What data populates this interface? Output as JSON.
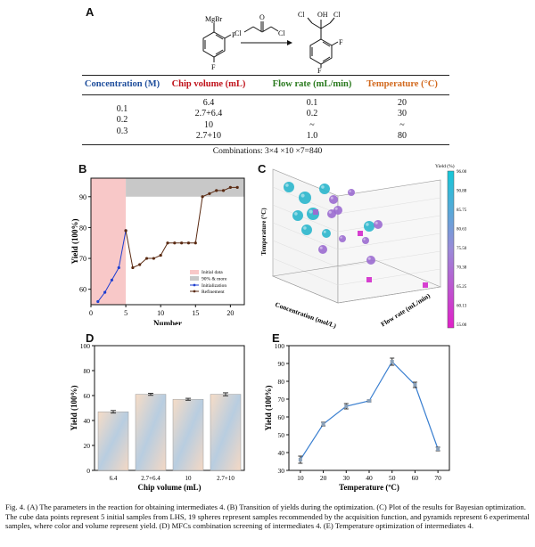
{
  "panelA": {
    "letter": "A",
    "reagent1": "MgBr",
    "reagent2_cl_left": "Cl",
    "reagent2_cl_right": "Cl",
    "reagent2_o": "O",
    "product_oh": "OH",
    "product_cl_left": "Cl",
    "product_cl_right": "Cl",
    "f_label": "F",
    "columns": [
      {
        "label": "Concentration (M)",
        "color": "#1f4e9c",
        "values": [
          "0.1",
          "0.2",
          "0.3"
        ]
      },
      {
        "label": "Chip volume (mL)",
        "color": "#c0121a",
        "values": [
          "6.4",
          "2.7+6.4",
          "10",
          "2.7+10"
        ]
      },
      {
        "label": "Flow rate (mL/min)",
        "color": "#2a7a1e",
        "values": [
          "0.1",
          "0.2",
          "~",
          "1.0"
        ]
      },
      {
        "label": "Temperature (°C)",
        "color": "#d2691e",
        "values": [
          "20",
          "30",
          "~",
          "80"
        ]
      }
    ],
    "combinations": "Combinations: 3×4 ×10 ×7=840"
  },
  "chart_data": [
    {
      "panel": "B",
      "type": "line",
      "xlabel": "Number",
      "ylabel": "Yield (100%)",
      "xlim": [
        0,
        22
      ],
      "ylim": [
        55,
        96
      ],
      "xticks": [
        0,
        5,
        10,
        15,
        20
      ],
      "yticks": [
        60,
        70,
        80,
        90
      ],
      "regions": [
        {
          "name": "Initial data",
          "x": [
            0,
            5
          ],
          "color": "#f8c8c8"
        },
        {
          "name": "90% & more",
          "y": [
            90,
            96
          ],
          "x": [
            5,
            22
          ],
          "color": "#c8c8c8"
        }
      ],
      "series": [
        {
          "name": "Initialization",
          "color": "#1f3fd0",
          "x": [
            1,
            2,
            3,
            4,
            5
          ],
          "y": [
            56,
            59,
            63,
            67,
            79
          ]
        },
        {
          "name": "Refinement",
          "color": "#5a2a12",
          "x": [
            5,
            6,
            7,
            8,
            9,
            10,
            11,
            12,
            13,
            14,
            15,
            16,
            17,
            18,
            19,
            20,
            21
          ],
          "y": [
            79,
            67,
            68,
            70,
            70,
            71,
            75,
            75,
            75,
            75,
            75,
            90,
            91,
            92,
            92,
            93,
            93
          ]
        }
      ],
      "legend": [
        "Initial data",
        "90% & more",
        "Initialization",
        "Refinement"
      ]
    },
    {
      "panel": "C",
      "type": "scatter",
      "axes": [
        "Concentration (mol/L)",
        "Flow rate (mL/min)",
        "Temperature (°C)"
      ],
      "colorbar_title": "Yield (%)",
      "colorbar_ticks": [
        "96.00",
        "90.88",
        "85.75",
        "80.63",
        "75.50",
        "70.38",
        "65.25",
        "60.13",
        "55.00"
      ]
    },
    {
      "panel": "D",
      "type": "bar",
      "categories": [
        "6.4",
        "2.7+6.4",
        "10",
        "2.7+10"
      ],
      "values": [
        47,
        61,
        57,
        61
      ],
      "errors": [
        1,
        0.8,
        0.8,
        1.2
      ],
      "xlabel": "Chip volume (mL)",
      "ylabel": "Yield (100%)",
      "ylim": [
        0,
        100
      ],
      "yticks": [
        0,
        20,
        40,
        60,
        80,
        100
      ]
    },
    {
      "panel": "E",
      "type": "line",
      "x": [
        10,
        20,
        30,
        40,
        50,
        60,
        70
      ],
      "y": [
        36,
        56,
        66,
        69,
        91,
        78,
        42
      ],
      "errors": [
        2,
        1,
        1.5,
        0.5,
        2,
        1.5,
        1
      ],
      "xlabel": "Temperature (ºC)",
      "ylabel": "Yield (100%)",
      "xlim": [
        5,
        75
      ],
      "ylim": [
        30,
        100
      ],
      "xticks": [
        10,
        20,
        30,
        40,
        50,
        60,
        70
      ],
      "yticks": [
        30,
        40,
        50,
        60,
        70,
        80,
        90,
        100
      ]
    }
  ],
  "labels": {
    "B": "B",
    "C": "C",
    "D": "D",
    "E": "E"
  },
  "caption": "Fig. 4. (A) The parameters in the reaction for obtaining intermediates 4. (B) Transition of yields during the optimization. (C) Plot of the results for Bayesian optimization. The cube data points represent 5 initial samples from LHS, 19 spheres represent samples recommended by the acquisition function, and pyramids represent 6 experimental samples, where color and volume represent yield. (D) MFCs combination screening of intermediates 4. (E) Temperature optimization of intermediates 4."
}
